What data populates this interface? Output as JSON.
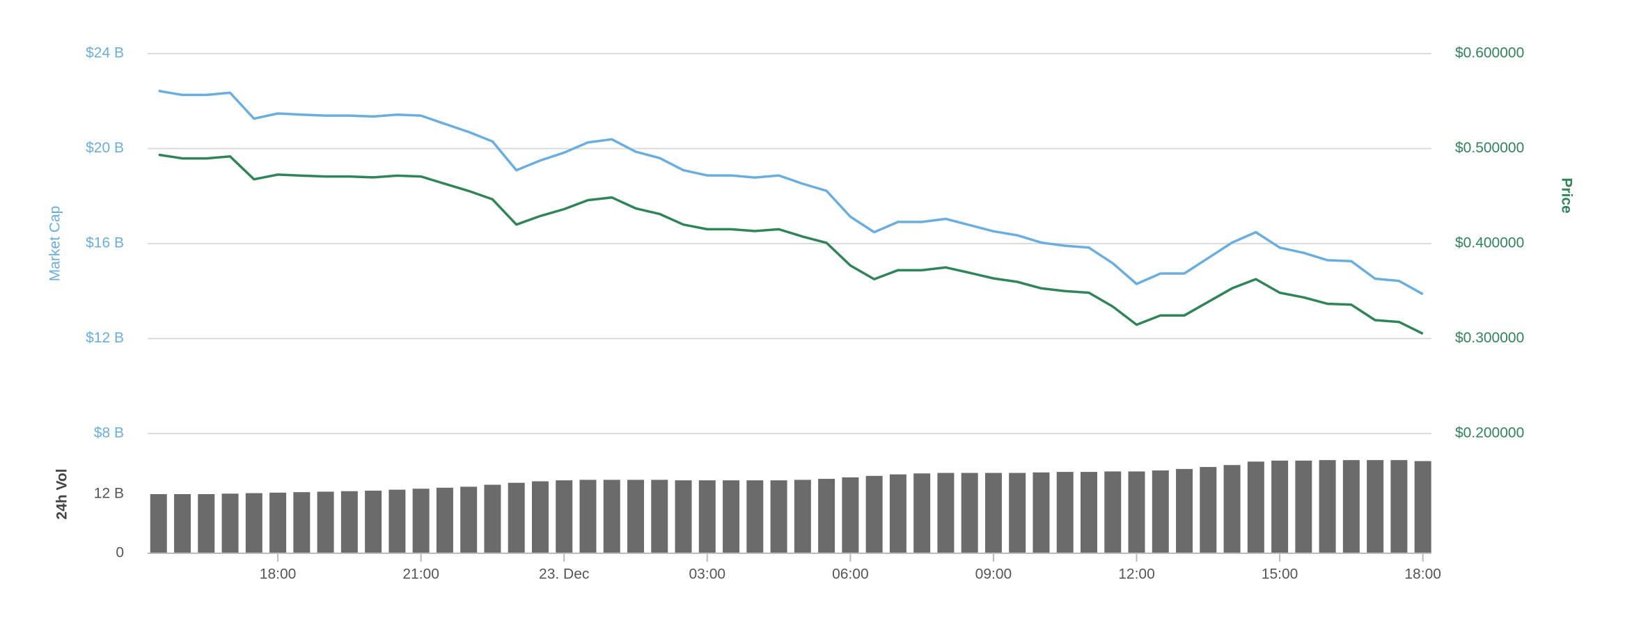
{
  "chart_data": [
    {
      "type": "line",
      "ylabel": "Market Cap",
      "y2label": "Price",
      "x": [
        15.5,
        16,
        16.5,
        17,
        17.5,
        18,
        18.5,
        19,
        19.5,
        20,
        20.5,
        21,
        21.5,
        22,
        22.5,
        23,
        23.5,
        24,
        24.5,
        25,
        25.5,
        26,
        26.5,
        27,
        27.5,
        28,
        28.5,
        29,
        29.5,
        30,
        30.5,
        31,
        31.5,
        32,
        32.5,
        33,
        33.5,
        34,
        34.5,
        35,
        35.5,
        36,
        36.5,
        37,
        37.5,
        38,
        38.5,
        39,
        39.5,
        40,
        40.5,
        41,
        41.5,
        42
      ],
      "xlim": [
        15.27,
        42.18
      ],
      "ylim": [
        8,
        24
      ],
      "yticks": [
        {
          "value": 8,
          "label": "$8 B"
        },
        {
          "value": 12,
          "label": "$12 B"
        },
        {
          "value": 16,
          "label": "$16 B"
        },
        {
          "value": 20,
          "label": "$20 B"
        },
        {
          "value": 24,
          "label": "$24 B"
        }
      ],
      "y2lim": [
        0.2,
        0.6
      ],
      "y2ticks": [
        {
          "value": 0.2,
          "label": "$0.200000"
        },
        {
          "value": 0.3,
          "label": "$0.300000"
        },
        {
          "value": 0.4,
          "label": "$0.400000"
        },
        {
          "value": 0.5,
          "label": "$0.500000"
        },
        {
          "value": 0.6,
          "label": "$0.600000"
        }
      ],
      "grid": true,
      "series": [
        {
          "name": "Market Cap",
          "color": "#6aaee0",
          "values": [
            22.43,
            22.26,
            22.26,
            22.35,
            21.26,
            21.48,
            21.43,
            21.39,
            21.39,
            21.35,
            21.43,
            21.39,
            21.04,
            20.7,
            20.3,
            19.09,
            19.5,
            19.83,
            20.26,
            20.39,
            19.87,
            19.6,
            19.09,
            18.87,
            18.87,
            18.78,
            18.87,
            18.52,
            18.22,
            17.13,
            16.48,
            16.91,
            16.91,
            17.04,
            16.78,
            16.52,
            16.35,
            16.04,
            15.91,
            15.83,
            15.17,
            14.3,
            14.74,
            14.74,
            15.39,
            16.04,
            16.48,
            15.83,
            15.61,
            15.3,
            15.26,
            14.52,
            14.43,
            13.87
          ]
        },
        {
          "name": "Price",
          "color": "#2f8558",
          "axis": "y2",
          "values": [
            0.4935,
            0.4897,
            0.4897,
            0.4917,
            0.4677,
            0.4726,
            0.4715,
            0.4706,
            0.4706,
            0.4697,
            0.4715,
            0.4706,
            0.4629,
            0.4554,
            0.4466,
            0.42,
            0.429,
            0.4363,
            0.4457,
            0.4486,
            0.4371,
            0.4312,
            0.42,
            0.4151,
            0.4151,
            0.4132,
            0.4151,
            0.4074,
            0.4008,
            0.3769,
            0.3626,
            0.372,
            0.372,
            0.3749,
            0.3692,
            0.3634,
            0.3597,
            0.3529,
            0.35,
            0.3483,
            0.3337,
            0.3146,
            0.3243,
            0.3243,
            0.3386,
            0.3529,
            0.3626,
            0.3483,
            0.3434,
            0.3366,
            0.3357,
            0.3194,
            0.3175,
            0.3051
          ]
        }
      ]
    },
    {
      "type": "bar",
      "ylabel": "24h Vol",
      "x": [
        15.5,
        16,
        16.5,
        17,
        17.5,
        18,
        18.5,
        19,
        19.5,
        20,
        20.5,
        21,
        21.5,
        22,
        22.5,
        23,
        23.5,
        24,
        24.5,
        25,
        25.5,
        26,
        26.5,
        27,
        27.5,
        28,
        28.5,
        29,
        29.5,
        30,
        30.5,
        31,
        31.5,
        32,
        32.5,
        33,
        33.5,
        34,
        34.5,
        35,
        35.5,
        36,
        36.5,
        37,
        37.5,
        38,
        38.5,
        39,
        39.5,
        40,
        40.5,
        41,
        41.5,
        42
      ],
      "xlim": [
        15.27,
        42.18
      ],
      "xticks": [
        {
          "value": 18,
          "label": "18:00"
        },
        {
          "value": 21,
          "label": "21:00"
        },
        {
          "value": 24,
          "label": "23. Dec"
        },
        {
          "value": 27,
          "label": "03:00"
        },
        {
          "value": 30,
          "label": "06:00"
        },
        {
          "value": 33,
          "label": "09:00"
        },
        {
          "value": 36,
          "label": "12:00"
        },
        {
          "value": 39,
          "label": "15:00"
        },
        {
          "value": 42,
          "label": "18:00"
        }
      ],
      "ylim": [
        0,
        24
      ],
      "yticks": [
        0,
        {
          "value": 12,
          "label": "12 B"
        }
      ],
      "color": "#6b6b6b",
      "values": [
        12.0,
        12.0,
        12.0,
        12.1,
        12.2,
        12.3,
        12.4,
        12.5,
        12.6,
        12.7,
        12.9,
        13.1,
        13.3,
        13.5,
        13.9,
        14.3,
        14.6,
        14.8,
        14.9,
        14.9,
        14.9,
        14.9,
        14.8,
        14.8,
        14.8,
        14.8,
        14.8,
        14.9,
        15.1,
        15.4,
        15.7,
        16.0,
        16.2,
        16.3,
        16.3,
        16.3,
        16.3,
        16.4,
        16.5,
        16.5,
        16.6,
        16.6,
        16.8,
        17.1,
        17.5,
        17.9,
        18.6,
        18.8,
        18.8,
        18.9,
        18.9,
        18.9,
        18.9,
        18.7
      ]
    }
  ]
}
